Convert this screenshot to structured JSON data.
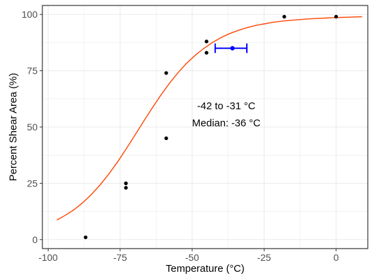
{
  "chart_data": {
    "type": "scatter",
    "title": "",
    "xlabel": "Temperature (°C)",
    "ylabel": "Percent Shear Area (%)",
    "xlim": [
      -102,
      11
    ],
    "ylim": [
      -4,
      104
    ],
    "x_ticks": [
      -100,
      -75,
      -50,
      -25,
      0
    ],
    "x_tick_labels": [
      "-100",
      "-75",
      "-50",
      "-25",
      "0"
    ],
    "y_ticks": [
      0,
      25,
      50,
      75,
      100
    ],
    "y_tick_labels": [
      "0",
      "25",
      "50",
      "75",
      "100"
    ],
    "grid": true,
    "legend": "none",
    "points": [
      {
        "x": -87,
        "y": 1
      },
      {
        "x": -73,
        "y": 25
      },
      {
        "x": -73,
        "y": 23
      },
      {
        "x": -59,
        "y": 74
      },
      {
        "x": -59,
        "y": 45
      },
      {
        "x": -45,
        "y": 88
      },
      {
        "x": -45,
        "y": 83
      },
      {
        "x": -18,
        "y": 99
      },
      {
        "x": 0,
        "y": 99
      }
    ],
    "fit_curve": {
      "x": [
        -97,
        -94,
        -91,
        -88,
        -85,
        -82,
        -79,
        -76,
        -73,
        -70,
        -67,
        -64,
        -61,
        -58,
        -55,
        -52,
        -49,
        -46,
        -43,
        -40,
        -37,
        -34,
        -31,
        -28,
        -25,
        -22,
        -19,
        -16,
        -13,
        -10,
        -7,
        -4,
        -1,
        2,
        5,
        9
      ],
      "y": [
        8.7,
        10.8,
        13.3,
        16.4,
        20.0,
        24.2,
        29.0,
        34.3,
        40.1,
        46.1,
        52.2,
        58.2,
        63.9,
        69.2,
        74.0,
        78.2,
        81.8,
        84.9,
        87.5,
        89.7,
        91.5,
        92.9,
        94.1,
        95.1,
        95.8,
        96.5,
        97.0,
        97.4,
        97.7,
        98.0,
        98.2,
        98.4,
        98.6,
        98.7,
        98.8,
        99.0
      ],
      "color": "#ff4500"
    },
    "median_estimate": {
      "x": -36,
      "y": 85,
      "x_low": -42,
      "x_high": -31,
      "color": "#0000ff"
    },
    "annotations": [
      "-42 to -31 °C",
      "Median: -36 °C"
    ],
    "point_color": "#000000",
    "panel_border_color": "#333333",
    "grid_color": "#ebebeb"
  }
}
